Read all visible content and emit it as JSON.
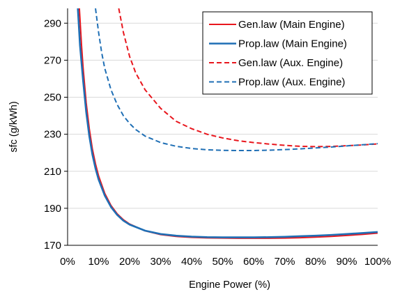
{
  "chart_data": {
    "type": "line",
    "title": "",
    "xlabel": "Engine Power (%)",
    "ylabel": "sfc (g/kWh)",
    "xlim": [
      0,
      100
    ],
    "ylim": [
      170,
      298
    ],
    "x_ticks": [
      {
        "value": 0,
        "label": "0%"
      },
      {
        "value": 10,
        "label": "10%"
      },
      {
        "value": 20,
        "label": "20%"
      },
      {
        "value": 30,
        "label": "30%"
      },
      {
        "value": 40,
        "label": "40%"
      },
      {
        "value": 50,
        "label": "50%"
      },
      {
        "value": 60,
        "label": "60%"
      },
      {
        "value": 70,
        "label": "70%"
      },
      {
        "value": 80,
        "label": "80%"
      },
      {
        "value": 90,
        "label": "90%"
      },
      {
        "value": 100,
        "label": "100%"
      }
    ],
    "y_ticks": [
      {
        "value": 170,
        "label": "170"
      },
      {
        "value": 190,
        "label": "190"
      },
      {
        "value": 210,
        "label": "210"
      },
      {
        "value": 230,
        "label": "230"
      },
      {
        "value": 250,
        "label": "250"
      },
      {
        "value": 270,
        "label": "270"
      },
      {
        "value": 290,
        "label": "290"
      }
    ],
    "grid": "horizontal",
    "legend_position": "top-right",
    "series": [
      {
        "name": "Gen.law (Main Engine)",
        "color": "#e8161d",
        "dash": "solid",
        "x": [
          3.8,
          4.5,
          5,
          6,
          7,
          8,
          9,
          10,
          12,
          14,
          16,
          18,
          20,
          25,
          30,
          35,
          40,
          45,
          50,
          55,
          60,
          65,
          70,
          75,
          80,
          85,
          90,
          95,
          100
        ],
        "y": [
          298,
          278,
          266,
          247,
          233,
          222,
          214,
          207.5,
          198,
          191.5,
          187,
          183.8,
          181.5,
          177.8,
          175.8,
          174.8,
          174.3,
          174.0,
          173.9,
          173.8,
          173.8,
          173.8,
          173.9,
          174.1,
          174.4,
          174.8,
          175.3,
          175.9,
          176.6
        ]
      },
      {
        "name": "Prop.law (Main Engine)",
        "color": "#1f6fb5",
        "dash": "solid",
        "x": [
          3.3,
          4,
          5,
          6,
          7,
          8,
          9,
          10,
          12,
          14,
          16,
          18,
          20,
          25,
          30,
          35,
          40,
          45,
          50,
          55,
          60,
          65,
          70,
          75,
          80,
          85,
          90,
          95,
          100
        ],
        "y": [
          298,
          278,
          259,
          242,
          229,
          219,
          211.5,
          205.5,
          196.8,
          190.7,
          186.4,
          183.3,
          181.2,
          177.9,
          176.1,
          175.2,
          174.7,
          174.4,
          174.3,
          174.3,
          174.3,
          174.4,
          174.6,
          174.9,
          175.2,
          175.6,
          176.1,
          176.6,
          177.2
        ]
      },
      {
        "name": "Gen.law (Aux. Engine)",
        "color": "#e8161d",
        "dash": "dashed",
        "x": [
          16.5,
          18,
          20,
          22,
          25,
          30,
          35,
          40,
          45,
          50,
          55,
          60,
          65,
          70,
          75,
          80,
          85,
          90,
          95,
          100
        ],
        "y": [
          298,
          285,
          272,
          263,
          254,
          244,
          237,
          233,
          230,
          228,
          226.5,
          225.5,
          224.7,
          224.0,
          223.5,
          223.3,
          223.4,
          223.8,
          224.2,
          224.8
        ]
      },
      {
        "name": "Prop.law (Aux. Engine)",
        "color": "#1f6fb5",
        "dash": "dashed",
        "x": [
          9,
          10,
          11,
          12,
          14,
          16,
          18,
          20,
          22,
          25,
          30,
          35,
          40,
          45,
          50,
          55,
          60,
          65,
          70,
          75,
          80,
          85,
          90,
          95,
          100
        ],
        "y": [
          298,
          285,
          274,
          265.5,
          254,
          246,
          240,
          235.8,
          232.5,
          229,
          225.5,
          223.5,
          222.3,
          221.6,
          221.3,
          221.2,
          221.2,
          221.4,
          221.7,
          222.1,
          222.6,
          223.1,
          223.7,
          224.3,
          224.9
        ]
      }
    ]
  }
}
